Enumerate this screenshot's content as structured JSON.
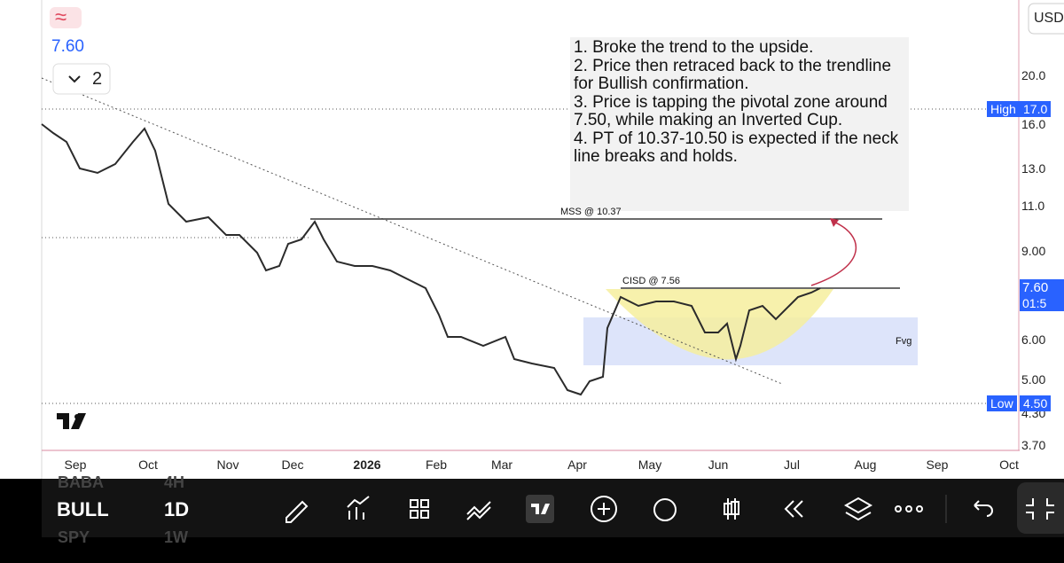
{
  "header": {
    "logo": "≈",
    "price": "7.60",
    "layers_count": "2"
  },
  "notes": [
    "1. Broke the trend to the upside.",
    "2. Price then retraced back to the trendline for Bullish confirmation.",
    "3. Price is tapping the pivotal zone around 7.50, while making an Inverted Cup.",
    "4. PT of 10.37-10.50 is expected if the neck line breaks and holds."
  ],
  "annotations": {
    "mss": "MSS @ 10.37",
    "cisd": "CISD @ 7.56",
    "fvg": "Fvg"
  },
  "price_axis": {
    "currency": "USD",
    "labels": [
      "20.0",
      "16.0",
      "13.0",
      "11.0",
      "9.00",
      "6.00",
      "5.00",
      "4.30",
      "3.70"
    ],
    "high": {
      "label": "High",
      "value": "17.0"
    },
    "low": {
      "label": "Low",
      "value": "4.50"
    },
    "last": {
      "price": "7.60",
      "countdown": "01:5"
    }
  },
  "time_axis": [
    "Sep",
    "Oct",
    "Nov",
    "Dec",
    "2026",
    "Feb",
    "Mar",
    "Apr",
    "May",
    "Jun",
    "Jul",
    "Aug",
    "Sep",
    "Oct"
  ],
  "toolbar": {
    "symbol": "BULL",
    "interval": "1D",
    "faded": [
      "BABA",
      "4H",
      "SPY",
      "1W"
    ]
  }
}
